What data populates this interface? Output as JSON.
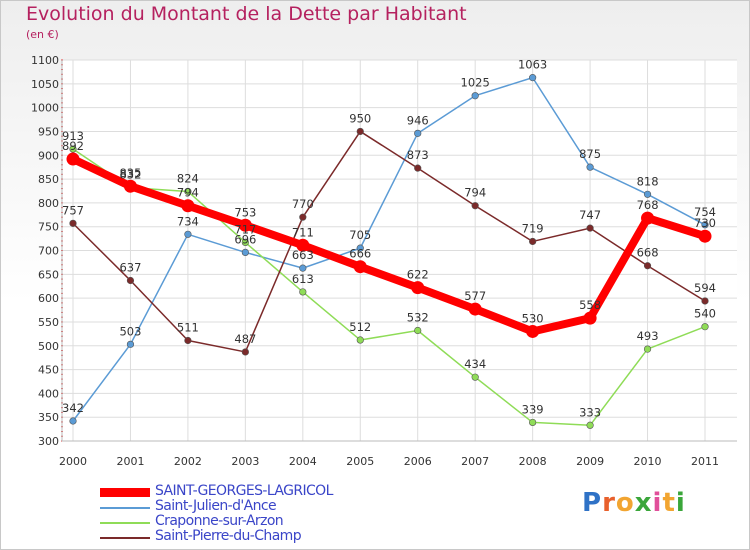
{
  "header": {
    "title": "Evolution du Montant de la Dette par Habitant",
    "subtitle": "(en €)"
  },
  "logo": {
    "letters": [
      "P",
      "r",
      "o",
      "x",
      "i",
      "t",
      "i"
    ],
    "colors": [
      "#2f72c6",
      "#e8602c",
      "#f2a531",
      "#3aa63a",
      "#e14f9a",
      "#f2a531",
      "#3aa63a"
    ]
  },
  "chart_data": {
    "type": "line",
    "title": "Evolution du Montant de la Dette par Habitant",
    "subtitle": "(en €)",
    "x": [
      "2000",
      "2001",
      "2002",
      "2003",
      "2004",
      "2005",
      "2006",
      "2007",
      "2008",
      "2009",
      "2010",
      "2011"
    ],
    "ylim": [
      300,
      1100
    ],
    "yticks": [
      300,
      350,
      400,
      450,
      500,
      550,
      600,
      650,
      700,
      750,
      800,
      850,
      900,
      950,
      1000,
      1050,
      1100
    ],
    "grid": true,
    "legend_position": "bottom-left",
    "series": [
      {
        "name": "SAINT-GEORGES-LAGRICOL",
        "color": "#ff0000",
        "values": [
          892,
          835,
          794,
          753,
          711,
          666,
          622,
          577,
          530,
          558,
          768,
          730
        ]
      },
      {
        "name": "Saint-Julien-d'Ance",
        "color": "#5b9bd5",
        "values": [
          342,
          503,
          734,
          696,
          663,
          705,
          946,
          1025,
          1063,
          875,
          818,
          754
        ]
      },
      {
        "name": "Craponne-sur-Arzon",
        "color": "#8fdc57",
        "values": [
          913,
          832,
          824,
          717,
          613,
          512,
          532,
          434,
          339,
          333,
          493,
          540
        ]
      },
      {
        "name": "Saint-Pierre-du-Champ",
        "color": "#7b2a2a",
        "values": [
          757,
          637,
          511,
          487,
          770,
          950,
          873,
          794,
          719,
          747,
          668,
          594
        ]
      }
    ]
  }
}
